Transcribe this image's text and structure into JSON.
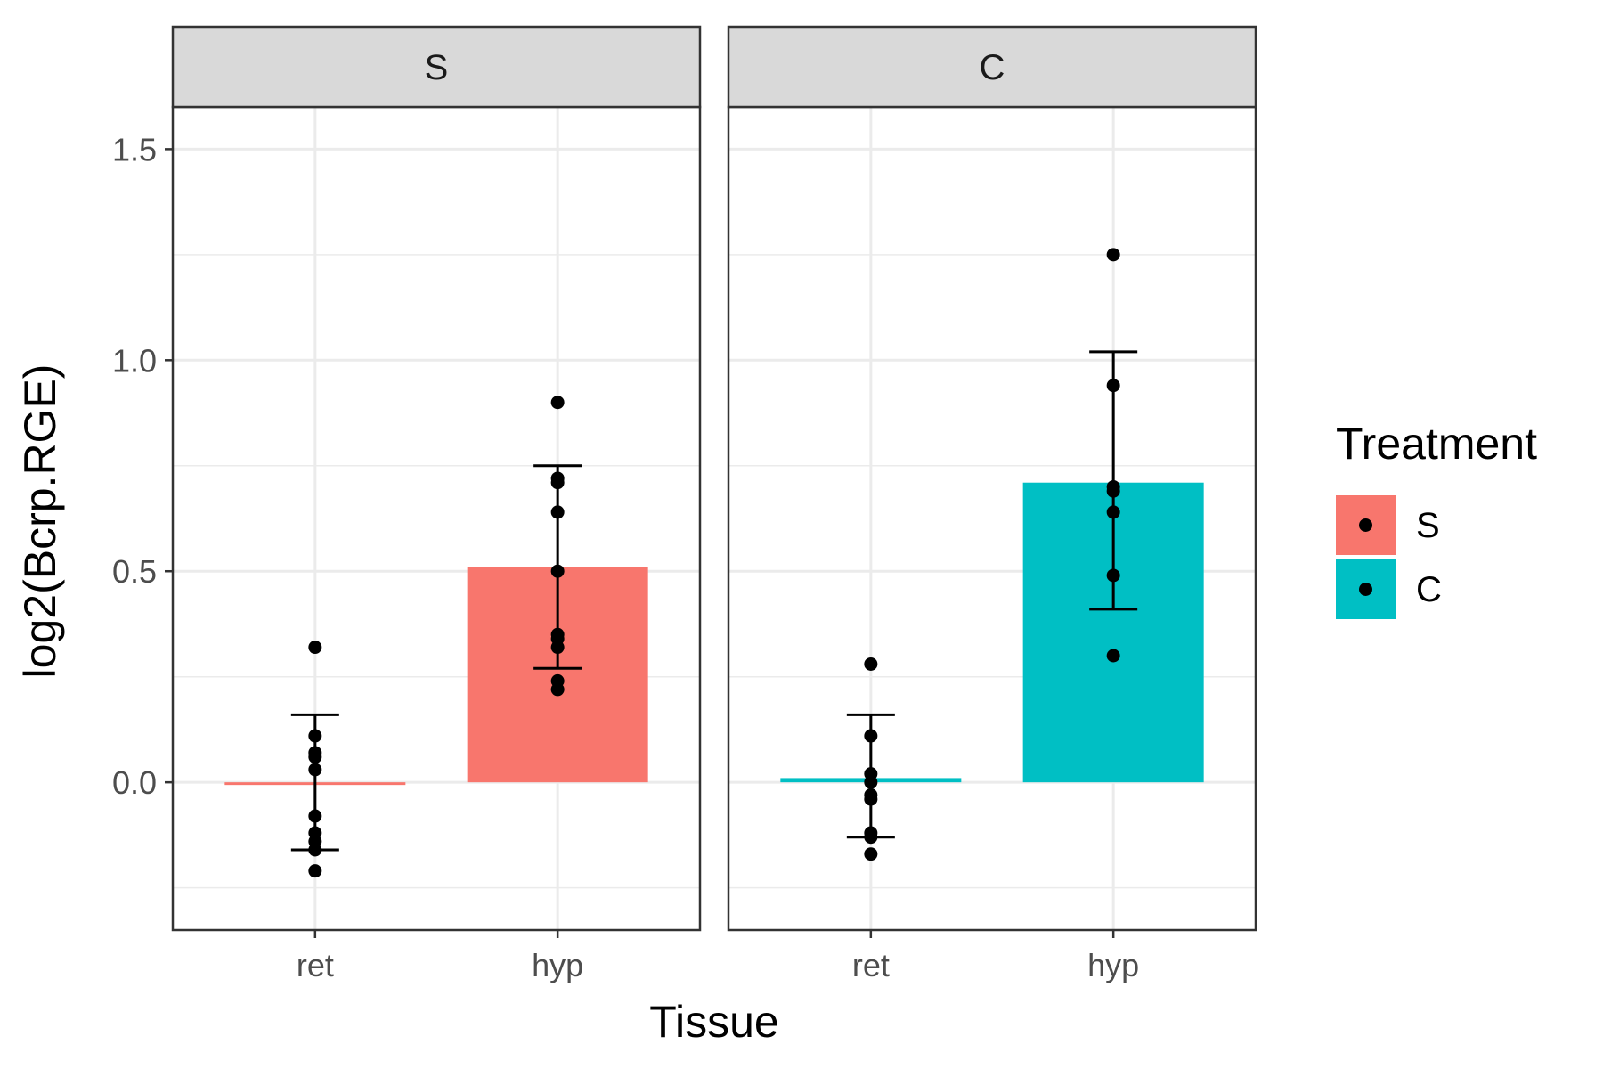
{
  "chart_data": {
    "type": "bar",
    "xlabel": "Tissue",
    "ylabel": "log2(Bcrp.RGE)",
    "ylim": [
      -0.35,
      1.6
    ],
    "yticks": [
      "0.0",
      "0.5",
      "1.0",
      "1.5"
    ],
    "ytick_values": [
      0,
      0.5,
      1.0,
      1.5
    ],
    "categories": [
      "ret",
      "hyp"
    ],
    "legend": {
      "title": "Treatment",
      "placement": "right",
      "entries": [
        {
          "label": "S",
          "color": "#F8766D"
        },
        {
          "label": "C",
          "color": "#00BFC4"
        }
      ]
    },
    "panels": [
      {
        "strip": "S",
        "color": "#F8766D",
        "bars": [
          {
            "category": "ret",
            "mean": 0.0,
            "err_low": -0.16,
            "err_high": 0.16,
            "points": [
              0.32,
              0.11,
              0.07,
              0.06,
              0.03,
              -0.08,
              -0.12,
              -0.14,
              -0.16,
              -0.21
            ]
          },
          {
            "category": "hyp",
            "mean": 0.51,
            "err_low": 0.27,
            "err_high": 0.75,
            "points": [
              0.9,
              0.72,
              0.71,
              0.64,
              0.5,
              0.35,
              0.34,
              0.32,
              0.24,
              0.22
            ]
          }
        ]
      },
      {
        "strip": "C",
        "color": "#00BFC4",
        "bars": [
          {
            "category": "ret",
            "mean": 0.01,
            "err_low": -0.13,
            "err_high": 0.16,
            "points": [
              0.28,
              0.11,
              0.02,
              0.0,
              -0.03,
              -0.04,
              -0.12,
              -0.13,
              -0.17
            ]
          },
          {
            "category": "hyp",
            "mean": 0.71,
            "err_low": 0.41,
            "err_high": 1.02,
            "points": [
              1.25,
              0.94,
              0.7,
              0.69,
              0.64,
              0.49,
              0.3
            ]
          }
        ]
      }
    ]
  }
}
